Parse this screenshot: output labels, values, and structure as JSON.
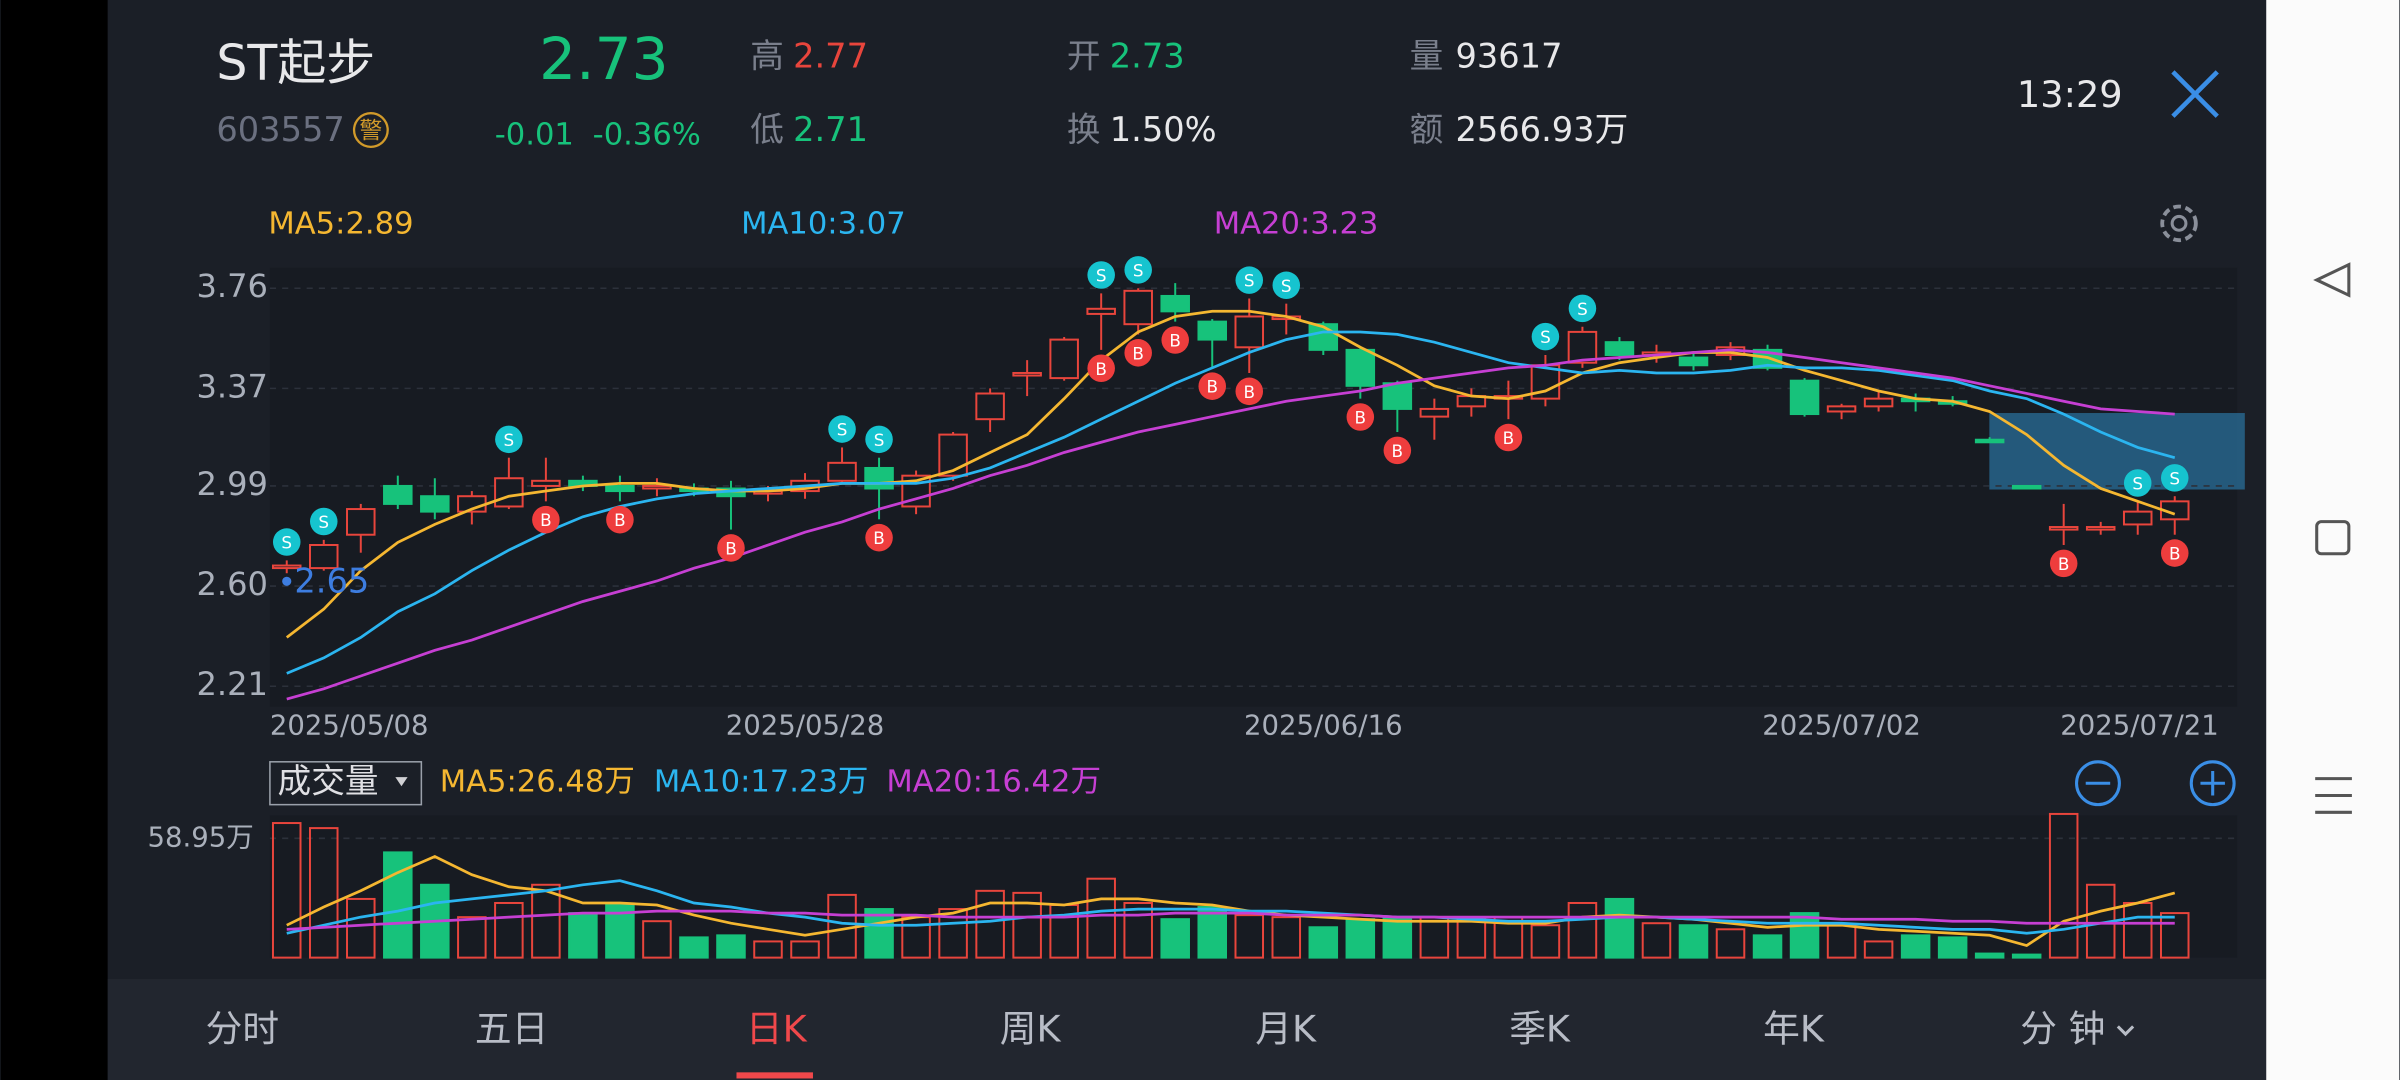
{
  "header": {
    "name": "ST起步",
    "code": "603557",
    "badge": "警",
    "price": "2.73",
    "change": "-0.01",
    "change_pct": "-0.36%",
    "high_label": "高",
    "high": "2.77",
    "low_label": "低",
    "low": "2.71",
    "open_label": "开",
    "open": "2.73",
    "turnover_label": "换",
    "turnover": "1.50%",
    "volume_label": "量",
    "volume": "93617",
    "amount_label": "额",
    "amount": "2566.93万",
    "time": "13:29"
  },
  "tabs": [
    "分时",
    "五日",
    "日K",
    "周K",
    "月K",
    "季K",
    "年K",
    "分 钟"
  ],
  "chart_data": [
    {
      "type": "candlestick",
      "categories": [
        "2025/05/08",
        null,
        null,
        null,
        null,
        null,
        null,
        null,
        null,
        null,
        null,
        null,
        null,
        null,
        "2025/05/28",
        null,
        null,
        null,
        null,
        null,
        null,
        null,
        null,
        null,
        null,
        null,
        null,
        null,
        "2025/06/16",
        null,
        null,
        null,
        null,
        null,
        null,
        null,
        null,
        null,
        null,
        null,
        null,
        null,
        "2025/07/02",
        null,
        null,
        null,
        null,
        null,
        null,
        null,
        null,
        "2025/07/21"
      ],
      "open": [
        2.67,
        2.67,
        2.8,
        2.99,
        2.95,
        2.89,
        2.91,
        2.99,
        3.01,
        2.99,
        2.98,
        2.98,
        2.98,
        2.96,
        2.97,
        3.01,
        3.06,
        2.91,
        3.03,
        3.25,
        3.42,
        3.41,
        3.66,
        3.62,
        3.73,
        3.63,
        3.53,
        3.64,
        3.62,
        3.52,
        3.39,
        3.26,
        3.3,
        3.33,
        3.33,
        3.47,
        3.55,
        3.5,
        3.49,
        3.5,
        3.52,
        3.4,
        3.28,
        3.3,
        3.33,
        3.32,
        3.17,
        2.99,
        2.82,
        2.82,
        2.84,
        2.86
      ],
      "high": [
        2.7,
        2.78,
        2.92,
        3.03,
        3.02,
        2.97,
        3.1,
        3.1,
        3.03,
        3.03,
        3.02,
        3.0,
        3.01,
        2.99,
        3.04,
        3.14,
        3.1,
        3.05,
        3.2,
        3.37,
        3.48,
        3.57,
        3.74,
        3.76,
        3.78,
        3.64,
        3.72,
        3.7,
        3.63,
        3.53,
        3.4,
        3.33,
        3.37,
        3.4,
        3.5,
        3.61,
        3.57,
        3.54,
        3.51,
        3.55,
        3.54,
        3.41,
        3.31,
        3.36,
        3.35,
        3.34,
        3.18,
        2.99,
        2.92,
        2.85,
        2.93,
        2.95
      ],
      "low": [
        2.65,
        2.66,
        2.73,
        2.9,
        2.86,
        2.84,
        2.9,
        2.93,
        2.97,
        2.93,
        2.95,
        2.95,
        2.82,
        2.93,
        2.94,
        3.0,
        2.86,
        2.88,
        3.01,
        3.2,
        3.34,
        3.4,
        3.52,
        3.58,
        3.63,
        3.45,
        3.43,
        3.58,
        3.5,
        3.33,
        3.2,
        3.17,
        3.26,
        3.25,
        3.3,
        3.45,
        3.48,
        3.47,
        3.44,
        3.48,
        3.44,
        3.26,
        3.25,
        3.28,
        3.28,
        3.3,
        3.16,
        2.98,
        2.76,
        2.8,
        2.8,
        2.8
      ],
      "close": [
        2.68,
        2.76,
        2.9,
        2.92,
        2.89,
        2.95,
        3.02,
        3.01,
        2.99,
        2.97,
        2.99,
        2.97,
        2.95,
        2.97,
        3.01,
        3.08,
        2.98,
        3.03,
        3.19,
        3.35,
        3.43,
        3.56,
        3.68,
        3.75,
        3.67,
        3.56,
        3.65,
        3.65,
        3.52,
        3.38,
        3.29,
        3.29,
        3.34,
        3.34,
        3.46,
        3.59,
        3.5,
        3.51,
        3.46,
        3.53,
        3.45,
        3.27,
        3.3,
        3.33,
        3.32,
        3.31,
        3.16,
        2.98,
        2.83,
        2.83,
        2.89,
        2.93
      ],
      "up_color": "#e8453c",
      "down_color": "#17c27b",
      "series": [
        {
          "name": "MA5:2.89",
          "color": "#f5b731",
          "values": [
            2.4,
            2.51,
            2.66,
            2.77,
            2.84,
            2.9,
            2.95,
            2.97,
            2.99,
            3.0,
            3.0,
            2.98,
            2.97,
            2.97,
            2.98,
            3.0,
            3.0,
            3.01,
            3.05,
            3.12,
            3.19,
            3.33,
            3.48,
            3.59,
            3.65,
            3.67,
            3.67,
            3.65,
            3.61,
            3.53,
            3.46,
            3.38,
            3.34,
            3.33,
            3.36,
            3.43,
            3.47,
            3.49,
            3.51,
            3.51,
            3.49,
            3.44,
            3.4,
            3.36,
            3.33,
            3.32,
            3.28,
            3.19,
            3.07,
            2.98,
            2.93,
            2.88
          ]
        },
        {
          "name": "MA10:3.07",
          "color": "#2bb5f0",
          "values": [
            2.26,
            2.32,
            2.4,
            2.5,
            2.57,
            2.66,
            2.74,
            2.81,
            2.87,
            2.91,
            2.94,
            2.96,
            2.97,
            2.98,
            2.99,
            3.0,
            3.0,
            3.0,
            3.02,
            3.06,
            3.12,
            3.18,
            3.25,
            3.32,
            3.39,
            3.45,
            3.51,
            3.56,
            3.59,
            3.59,
            3.58,
            3.55,
            3.51,
            3.47,
            3.45,
            3.43,
            3.44,
            3.43,
            3.43,
            3.44,
            3.46,
            3.45,
            3.45,
            3.44,
            3.42,
            3.4,
            3.36,
            3.33,
            3.27,
            3.2,
            3.14,
            3.1
          ]
        },
        {
          "name": "MA20:3.23",
          "color": "#c63fd3",
          "values": [
            2.16,
            2.2,
            2.25,
            2.3,
            2.35,
            2.39,
            2.44,
            2.49,
            2.54,
            2.58,
            2.62,
            2.67,
            2.71,
            2.76,
            2.81,
            2.85,
            2.9,
            2.94,
            2.98,
            3.03,
            3.07,
            3.12,
            3.16,
            3.2,
            3.23,
            3.26,
            3.29,
            3.32,
            3.34,
            3.36,
            3.39,
            3.41,
            3.43,
            3.45,
            3.46,
            3.48,
            3.49,
            3.5,
            3.51,
            3.52,
            3.51,
            3.49,
            3.47,
            3.45,
            3.43,
            3.41,
            3.38,
            3.35,
            3.32,
            3.29,
            3.28,
            3.27
          ]
        }
      ],
      "ylim": [
        2.13,
        3.84
      ],
      "yticks": [
        3.76,
        3.37,
        2.99,
        {
          "value": 2.6,
          "label": "2.60"
        },
        2.21
      ],
      "grid": true,
      "sell_label": "S",
      "buy_label": "B",
      "sell_signals": [
        0,
        1,
        6,
        15,
        16,
        22,
        23,
        26,
        27,
        34,
        35,
        50,
        51
      ],
      "buy_signals": [
        7,
        9,
        12,
        16,
        22,
        23,
        24,
        25,
        26,
        29,
        30,
        33,
        48,
        51
      ],
      "annotations": [
        "2.65"
      ]
    },
    {
      "type": "bar",
      "title": "成交量",
      "values": [
        66.5,
        64,
        29,
        52,
        36,
        20,
        27,
        36,
        22,
        26,
        18,
        10,
        11,
        8,
        8,
        31,
        24,
        20,
        24,
        33,
        32,
        26,
        39,
        27,
        19,
        25,
        21,
        20,
        15,
        19,
        20,
        20,
        20,
        20,
        16,
        27,
        29,
        17,
        16,
        14,
        11,
        22,
        16,
        8,
        11,
        10,
        2,
        1.5,
        71,
        36,
        27,
        22
      ],
      "series": [
        {
          "name": "MA5:26.48万",
          "color": "#f5b731",
          "values": [
            16,
            25,
            33,
            42,
            50,
            41,
            35,
            33,
            27,
            27,
            26,
            21,
            17,
            14,
            11,
            14,
            17,
            20,
            22,
            27,
            27,
            26,
            29,
            29,
            27,
            26,
            23,
            21,
            20,
            19,
            18,
            18,
            18,
            17,
            17,
            20,
            21,
            20,
            19,
            17,
            15,
            16,
            16,
            14,
            13,
            12,
            11,
            6,
            18,
            23,
            27,
            32
          ]
        },
        {
          "name": "MA10:17.23万",
          "color": "#2bb5f0",
          "values": [
            12,
            16,
            20,
            23,
            27,
            29,
            31,
            33,
            36,
            38,
            33,
            27,
            25,
            22,
            20,
            17,
            16,
            16,
            17,
            18,
            20,
            21,
            23,
            24,
            24,
            24,
            23,
            23,
            22,
            21,
            20,
            20,
            19,
            18,
            18,
            19,
            20,
            20,
            19,
            18,
            17,
            17,
            17,
            16,
            15,
            14,
            14,
            12,
            14,
            17,
            20,
            20
          ]
        },
        {
          "name": "MA20:16.42万",
          "color": "#c63fd3",
          "values": [
            14,
            15,
            16,
            17,
            18,
            19,
            20,
            21,
            22,
            22,
            23,
            23,
            23,
            22,
            22,
            21,
            21,
            21,
            20,
            20,
            20,
            20,
            21,
            21,
            22,
            22,
            22,
            21,
            21,
            21,
            20,
            20,
            20,
            20,
            20,
            20,
            20,
            20,
            20,
            20,
            20,
            20,
            19,
            19,
            19,
            18,
            18,
            17,
            17,
            17,
            17,
            17
          ]
        }
      ],
      "ylim": [
        0,
        70.3
      ],
      "yticks": [
        {
          "value": 58.95,
          "label": "58.95万"
        }
      ]
    }
  ]
}
